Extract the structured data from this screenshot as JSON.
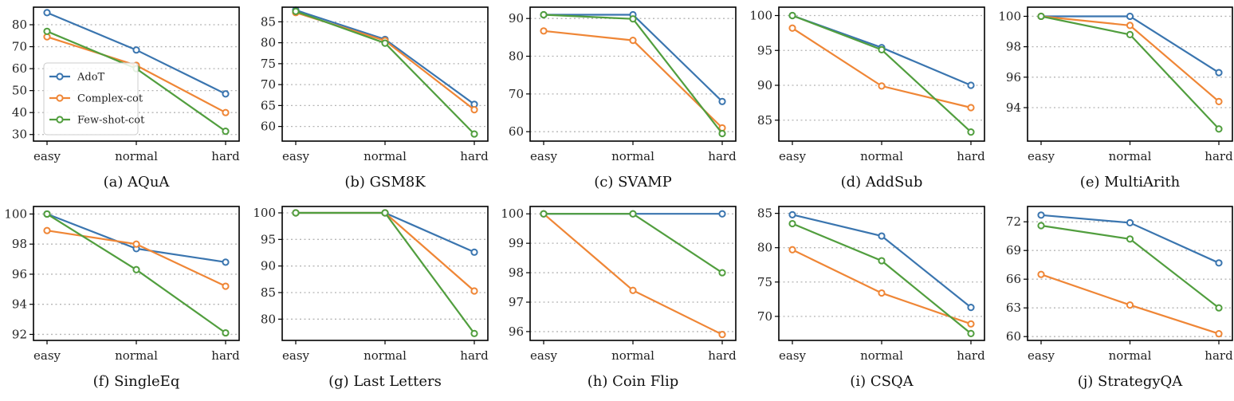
{
  "series_styles": [
    {
      "name": "AdoT",
      "color": "#3a75af"
    },
    {
      "name": "Complex-cot",
      "color": "#ef8636"
    },
    {
      "name": "Few-shot-cot",
      "color": "#519e3e"
    }
  ],
  "chart_data": [
    {
      "type": "line",
      "caption": "(a) AQuA",
      "categories": [
        "easy",
        "normal",
        "hard"
      ],
      "ylim": [
        27,
        88
      ],
      "yticks": [
        30,
        40,
        50,
        60,
        70,
        80
      ],
      "grid": true,
      "legend": "left",
      "series": [
        {
          "name": "AdoT",
          "values": [
            85.5,
            68.5,
            48.5
          ]
        },
        {
          "name": "Complex-cot",
          "values": [
            74.5,
            61.5,
            40
          ]
        },
        {
          "name": "Few-shot-cot",
          "values": [
            77,
            60,
            31.5
          ]
        }
      ]
    },
    {
      "type": "line",
      "caption": "(b) GSM8K",
      "categories": [
        "easy",
        "normal",
        "hard"
      ],
      "ylim": [
        56.5,
        88.5
      ],
      "yticks": [
        60,
        65,
        70,
        75,
        80,
        85
      ],
      "grid": true,
      "series": [
        {
          "name": "AdoT",
          "values": [
            87.8,
            80.8,
            65.3
          ]
        },
        {
          "name": "Complex-cot",
          "values": [
            87.2,
            80.5,
            64.0
          ]
        },
        {
          "name": "Few-shot-cot",
          "values": [
            87.5,
            79.9,
            58.2
          ]
        }
      ]
    },
    {
      "type": "line",
      "caption": "(c) SVAMP",
      "categories": [
        "easy",
        "normal",
        "hard"
      ],
      "ylim": [
        57.5,
        93
      ],
      "yticks": [
        60,
        70,
        80,
        90
      ],
      "grid": true,
      "series": [
        {
          "name": "AdoT",
          "values": [
            91,
            91,
            68
          ]
        },
        {
          "name": "Complex-cot",
          "values": [
            86.7,
            84.2,
            61
          ]
        },
        {
          "name": "Few-shot-cot",
          "values": [
            91,
            89.9,
            59.5
          ]
        }
      ]
    },
    {
      "type": "line",
      "caption": "(d) AddSub",
      "categories": [
        "easy",
        "normal",
        "hard"
      ],
      "ylim": [
        82,
        101.2
      ],
      "yticks": [
        85,
        90,
        95,
        100
      ],
      "grid": true,
      "series": [
        {
          "name": "AdoT",
          "values": [
            100,
            95.4,
            90
          ]
        },
        {
          "name": "Complex-cot",
          "values": [
            98.2,
            89.9,
            86.8
          ]
        },
        {
          "name": "Few-shot-cot",
          "values": [
            100,
            95.1,
            83.3
          ]
        }
      ]
    },
    {
      "type": "line",
      "caption": "(e) MultiArith",
      "categories": [
        "easy",
        "normal",
        "hard"
      ],
      "ylim": [
        91.8,
        100.6
      ],
      "yticks": [
        94,
        96,
        98,
        100
      ],
      "grid": true,
      "series": [
        {
          "name": "AdoT",
          "values": [
            100,
            100,
            96.3
          ]
        },
        {
          "name": "Complex-cot",
          "values": [
            100,
            99.4,
            94.4
          ]
        },
        {
          "name": "Few-shot-cot",
          "values": [
            100,
            98.8,
            92.6
          ]
        }
      ]
    },
    {
      "type": "line",
      "caption": "(f) SingleEq",
      "categories": [
        "easy",
        "normal",
        "hard"
      ],
      "ylim": [
        91.6,
        100.5
      ],
      "yticks": [
        92,
        94,
        96,
        98,
        100
      ],
      "grid": true,
      "series": [
        {
          "name": "AdoT",
          "values": [
            100,
            97.7,
            96.8
          ]
        },
        {
          "name": "Complex-cot",
          "values": [
            98.9,
            98,
            95.2
          ]
        },
        {
          "name": "Few-shot-cot",
          "values": [
            100,
            96.3,
            92.1
          ]
        }
      ]
    },
    {
      "type": "line",
      "caption": "(g) Last Letters",
      "categories": [
        "easy",
        "normal",
        "hard"
      ],
      "ylim": [
        76,
        101.2
      ],
      "yticks": [
        80,
        85,
        90,
        95,
        100
      ],
      "grid": true,
      "series": [
        {
          "name": "AdoT",
          "values": [
            100,
            100,
            92.6
          ]
        },
        {
          "name": "Complex-cot",
          "values": [
            100,
            100,
            85.3
          ]
        },
        {
          "name": "Few-shot-cot",
          "values": [
            100,
            100,
            77.3
          ]
        }
      ]
    },
    {
      "type": "line",
      "caption": "(h) Coin Flip",
      "categories": [
        "easy",
        "normal",
        "hard"
      ],
      "ylim": [
        95.7,
        100.25
      ],
      "yticks": [
        96,
        97,
        98,
        99,
        100
      ],
      "grid": true,
      "series": [
        {
          "name": "AdoT",
          "values": [
            100,
            100,
            100
          ]
        },
        {
          "name": "Complex-cot",
          "values": [
            100,
            97.4,
            95.9
          ]
        },
        {
          "name": "Few-shot-cot",
          "values": [
            100,
            100,
            98
          ]
        }
      ]
    },
    {
      "type": "line",
      "caption": "(i) CSQA",
      "categories": [
        "easy",
        "normal",
        "hard"
      ],
      "ylim": [
        66.5,
        86
      ],
      "yticks": [
        70,
        75,
        80,
        85
      ],
      "grid": true,
      "series": [
        {
          "name": "AdoT",
          "values": [
            84.8,
            81.7,
            71.3
          ]
        },
        {
          "name": "Complex-cot",
          "values": [
            79.7,
            73.4,
            68.9
          ]
        },
        {
          "name": "Few-shot-cot",
          "values": [
            83.5,
            78.1,
            67.5
          ]
        }
      ]
    },
    {
      "type": "line",
      "caption": "(j) StrategyQA",
      "categories": [
        "easy",
        "normal",
        "hard"
      ],
      "ylim": [
        59.6,
        73.6
      ],
      "yticks": [
        60,
        63,
        66,
        69,
        72
      ],
      "grid": true,
      "series": [
        {
          "name": "AdoT",
          "values": [
            72.7,
            71.9,
            67.7
          ]
        },
        {
          "name": "Complex-cot",
          "values": [
            66.5,
            63.3,
            60.3
          ]
        },
        {
          "name": "Few-shot-cot",
          "values": [
            71.6,
            70.2,
            63
          ]
        }
      ]
    }
  ]
}
